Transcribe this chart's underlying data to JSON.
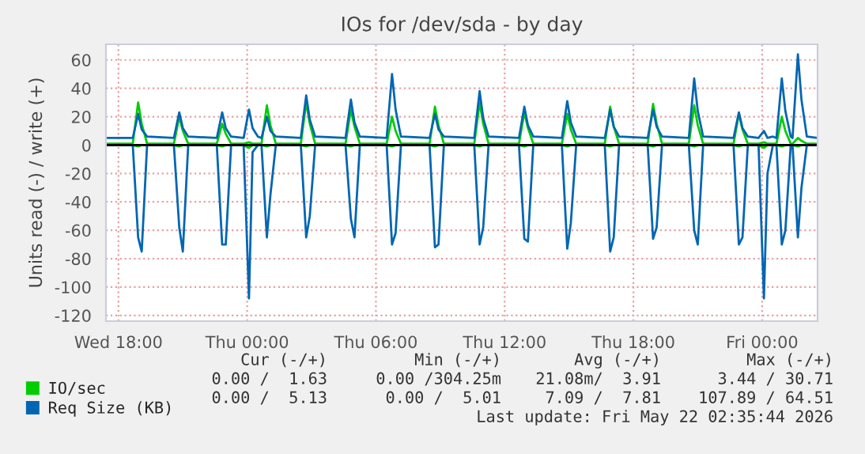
{
  "chart_data": {
    "type": "line",
    "title": "IOs for /dev/sda - by day",
    "ylabel": "Units read (-) / write (+)",
    "x": [
      "2026-05-20T17:25",
      "2026-05-20T18:40",
      "2026-05-20T18:55",
      "2026-05-20T19:05",
      "2026-05-20T19:20",
      "2026-05-20T20:35",
      "2026-05-20T20:50",
      "2026-05-20T21:00",
      "2026-05-20T21:15",
      "2026-05-20T22:35",
      "2026-05-20T22:50",
      "2026-05-20T23:00",
      "2026-05-20T23:15",
      "2026-05-20T23:50",
      "2026-05-21T00:05",
      "2026-05-21T00:15",
      "2026-05-21T00:30",
      "2026-05-21T00:40",
      "2026-05-21T00:55",
      "2026-05-21T01:05",
      "2026-05-21T01:20",
      "2026-05-21T02:30",
      "2026-05-21T02:45",
      "2026-05-21T02:55",
      "2026-05-21T03:10",
      "2026-05-21T04:35",
      "2026-05-21T04:50",
      "2026-05-21T05:00",
      "2026-05-21T05:15",
      "2026-05-21T06:30",
      "2026-05-21T06:45",
      "2026-05-21T06:55",
      "2026-05-21T07:10",
      "2026-05-21T08:30",
      "2026-05-21T08:45",
      "2026-05-21T08:55",
      "2026-05-21T09:10",
      "2026-05-21T10:35",
      "2026-05-21T10:50",
      "2026-05-21T11:00",
      "2026-05-21T11:15",
      "2026-05-21T12:40",
      "2026-05-21T12:55",
      "2026-05-21T13:05",
      "2026-05-21T13:20",
      "2026-05-21T14:40",
      "2026-05-21T14:55",
      "2026-05-21T15:05",
      "2026-05-21T15:20",
      "2026-05-21T16:40",
      "2026-05-21T16:55",
      "2026-05-21T17:05",
      "2026-05-21T17:20",
      "2026-05-21T18:40",
      "2026-05-21T18:55",
      "2026-05-21T19:05",
      "2026-05-21T19:20",
      "2026-05-21T20:35",
      "2026-05-21T20:50",
      "2026-05-21T21:00",
      "2026-05-21T21:15",
      "2026-05-21T22:40",
      "2026-05-21T22:55",
      "2026-05-21T23:05",
      "2026-05-21T23:20",
      "2026-05-21T23:50",
      "2026-05-22T00:05",
      "2026-05-22T00:15",
      "2026-05-22T00:30",
      "2026-05-22T00:40",
      "2026-05-22T00:55",
      "2026-05-22T01:05",
      "2026-05-22T01:20",
      "2026-05-22T01:25",
      "2026-05-22T01:40",
      "2026-05-22T01:50",
      "2026-05-22T02:05",
      "2026-05-22T02:35"
    ],
    "series": [
      {
        "color": "#00cc00",
        "values": [
          0,
          0,
          -1,
          0,
          0,
          0,
          -1,
          0,
          0,
          0,
          -1,
          0,
          0,
          0,
          -2,
          0,
          0,
          0,
          -1,
          0,
          0,
          0,
          -1,
          0,
          0,
          0,
          -1,
          0,
          0,
          0,
          -1,
          0,
          0,
          0,
          -1,
          0,
          0,
          0,
          -1,
          0,
          0,
          0,
          -1,
          0,
          0,
          0,
          -1,
          0,
          0,
          0,
          -1,
          0,
          0,
          0,
          -1,
          0,
          0,
          0,
          -1,
          0,
          0,
          0,
          -1,
          0,
          0,
          0,
          -2,
          0,
          0,
          0,
          -1,
          0,
          0,
          0,
          -1,
          0,
          0,
          0
        ]
      },
      {
        "color": "#0066b3",
        "values": [
          0,
          0,
          -65,
          -75,
          0,
          0,
          -58,
          -75,
          0,
          0,
          -70,
          -70,
          0,
          0,
          -108,
          -5,
          0,
          0,
          -65,
          -35,
          0,
          0,
          -65,
          -50,
          0,
          0,
          -52,
          -65,
          0,
          0,
          -70,
          -62,
          0,
          0,
          -72,
          -70,
          0,
          0,
          -70,
          -58,
          0,
          0,
          -66,
          -68,
          0,
          0,
          -73,
          -55,
          0,
          0,
          -75,
          -65,
          0,
          0,
          -66,
          -58,
          0,
          0,
          -60,
          -70,
          0,
          0,
          -70,
          -65,
          0,
          0,
          -108,
          -20,
          0,
          0,
          -70,
          -60,
          0,
          0,
          -65,
          -30,
          0,
          0
        ]
      },
      {
        "name": "IO/sec",
        "color": "#00cc00",
        "values": [
          1,
          1,
          30,
          15,
          1,
          1,
          20,
          10,
          1,
          1,
          15,
          8,
          1,
          1,
          2,
          1,
          1,
          1,
          28,
          14,
          1,
          1,
          30,
          15,
          1,
          1,
          25,
          13,
          1,
          1,
          20,
          10,
          1,
          1,
          27,
          14,
          1,
          1,
          30,
          15,
          1,
          1,
          23,
          12,
          1,
          1,
          22,
          11,
          1,
          1,
          27,
          13,
          1,
          1,
          29,
          15,
          1,
          1,
          28,
          14,
          1,
          1,
          22,
          11,
          1,
          1,
          2,
          1,
          1,
          1,
          20,
          10,
          1,
          1,
          5,
          3,
          1,
          1
        ]
      },
      {
        "name": "Req Size (KB)",
        "color": "#0066b3",
        "values": [
          5,
          5,
          22,
          11,
          6,
          5,
          23,
          12,
          6,
          5,
          23,
          12,
          6,
          5,
          25,
          12,
          6,
          5,
          20,
          10,
          6,
          5,
          35,
          18,
          6,
          5,
          32,
          16,
          6,
          5,
          50,
          25,
          6,
          5,
          22,
          11,
          6,
          5,
          38,
          19,
          6,
          5,
          27,
          14,
          6,
          5,
          31,
          16,
          6,
          5,
          25,
          13,
          6,
          5,
          25,
          13,
          6,
          5,
          47,
          24,
          6,
          5,
          23,
          12,
          6,
          5,
          10,
          5,
          6,
          5,
          47,
          24,
          6,
          5,
          64,
          32,
          6,
          5
        ]
      }
    ],
    "xlim": [
      "2026-05-20T17:25",
      "2026-05-22T02:35"
    ],
    "xticks": [
      {
        "value": "2026-05-20T18:00",
        "label": "Wed 18:00"
      },
      {
        "value": "2026-05-21T00:00",
        "label": "Thu 00:00"
      },
      {
        "value": "2026-05-21T06:00",
        "label": "Thu 06:00"
      },
      {
        "value": "2026-05-21T12:00",
        "label": "Thu 12:00"
      },
      {
        "value": "2026-05-21T18:00",
        "label": "Thu 18:00"
      },
      {
        "value": "2026-05-22T00:00",
        "label": "Fri 00:00"
      }
    ],
    "ylim": [
      -124,
      71
    ],
    "yticks": [
      -120,
      -100,
      -80,
      -60,
      -40,
      -20,
      0,
      20,
      40,
      60
    ],
    "ref_lines": [
      {
        "axis": "y",
        "value": 0,
        "color": "#000000"
      }
    ],
    "grid": true,
    "legend": "bottom",
    "marker": "none",
    "line_style": "solid",
    "annotations": [
      "Cur (-/+)",
      "Min (-/+)",
      "Avg (-/+)",
      "Max (-/+)",
      "0.00 /  1.63",
      "0.00 /304.25m",
      "21.08m/  3.91",
      "3.44 / 30.71",
      "0.00 /  5.13",
      "0.00 /  5.01",
      "7.09 /  7.81",
      "107.89 / 64.51",
      "Last update: Fri May 22 02:35:44 2026"
    ]
  }
}
